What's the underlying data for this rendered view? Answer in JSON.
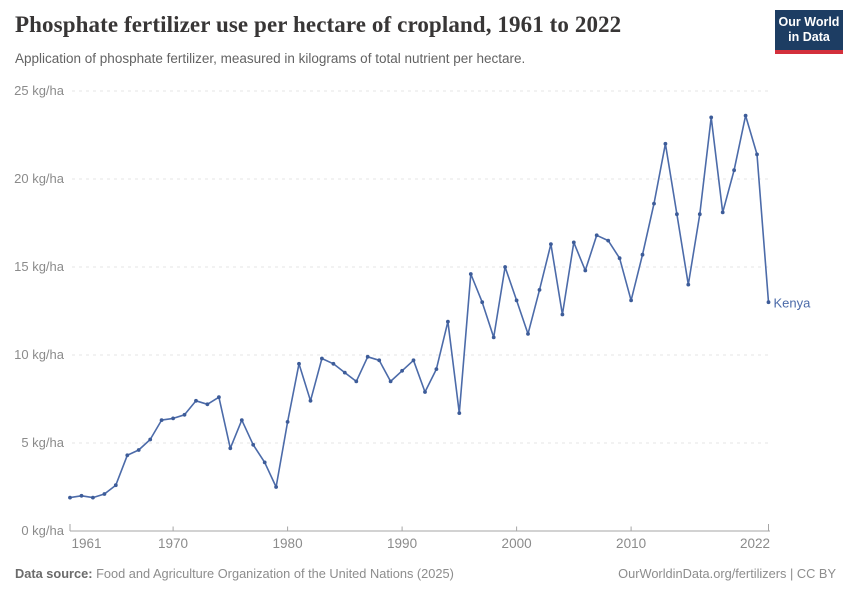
{
  "header": {
    "title": "Phosphate fertilizer use per hectare of cropland, 1961 to 2022",
    "subtitle": "Application of phosphate fertilizer, measured in kilograms of total nutrient per hectare."
  },
  "logo": {
    "line1": "Our World",
    "line2": "in Data",
    "background_color": "#1d3d63",
    "bar_color": "#d3303c"
  },
  "chart_data": {
    "type": "line",
    "title": "Phosphate fertilizer use per hectare of cropland, 1961 to 2022",
    "ylabel_unit": "kg/ha",
    "xlim": [
      1961,
      2022
    ],
    "ylim": [
      0,
      25
    ],
    "grid": "horizontal dashed",
    "legend_position": "end-of-line label",
    "x": [
      1961,
      1962,
      1963,
      1964,
      1965,
      1966,
      1967,
      1968,
      1969,
      1970,
      1971,
      1972,
      1973,
      1974,
      1975,
      1976,
      1977,
      1978,
      1979,
      1980,
      1981,
      1982,
      1983,
      1984,
      1985,
      1986,
      1987,
      1988,
      1989,
      1990,
      1991,
      1992,
      1993,
      1994,
      1995,
      1996,
      1997,
      1998,
      1999,
      2000,
      2001,
      2002,
      2003,
      2004,
      2005,
      2006,
      2007,
      2008,
      2009,
      2010,
      2011,
      2012,
      2013,
      2014,
      2015,
      2016,
      2017,
      2018,
      2019,
      2020,
      2021,
      2022
    ],
    "series": [
      {
        "name": "Kenya",
        "color": "#4c6ba9",
        "marker_color": "#3d5c99",
        "values": [
          1.9,
          2.0,
          1.9,
          2.1,
          2.6,
          4.3,
          4.6,
          5.2,
          6.3,
          6.4,
          6.6,
          7.4,
          7.2,
          7.6,
          4.7,
          6.3,
          4.9,
          3.9,
          2.5,
          6.2,
          9.5,
          7.4,
          9.8,
          9.5,
          9.0,
          8.5,
          9.9,
          9.7,
          8.5,
          9.1,
          9.7,
          7.9,
          9.2,
          11.9,
          6.7,
          14.6,
          13.0,
          11.0,
          15.0,
          13.1,
          11.2,
          13.7,
          16.3,
          12.3,
          16.4,
          14.8,
          16.8,
          16.5,
          15.5,
          13.1,
          15.7,
          18.6,
          22.0,
          18.0,
          14.0,
          18.0,
          23.5,
          18.1,
          20.5,
          23.6,
          21.4,
          13.0
        ]
      }
    ],
    "yticks": [
      {
        "value": 0,
        "label": "0 kg/ha"
      },
      {
        "value": 5,
        "label": "5 kg/ha"
      },
      {
        "value": 10,
        "label": "10 kg/ha"
      },
      {
        "value": 15,
        "label": "15 kg/ha"
      },
      {
        "value": 20,
        "label": "20 kg/ha"
      },
      {
        "value": 25,
        "label": "25 kg/ha"
      }
    ],
    "xticks": [
      {
        "value": 1961,
        "label": "1961"
      },
      {
        "value": 1970,
        "label": "1970"
      },
      {
        "value": 1980,
        "label": "1980"
      },
      {
        "value": 1990,
        "label": "1990"
      },
      {
        "value": 2000,
        "label": "2000"
      },
      {
        "value": 2010,
        "label": "2010"
      },
      {
        "value": 2022,
        "label": "2022"
      }
    ],
    "colors": {
      "gridline": "#e4e4e4",
      "axis": "#a5a5a5",
      "tick_label": "#8b8b8b"
    }
  },
  "footer": {
    "source_label": "Data source:",
    "source_value": " Food and Agriculture Organization of the United Nations (2025)",
    "credit_link": "OurWorldinData.org/fertilizers",
    "credit_divider": " | ",
    "credit_license": "CC BY"
  }
}
